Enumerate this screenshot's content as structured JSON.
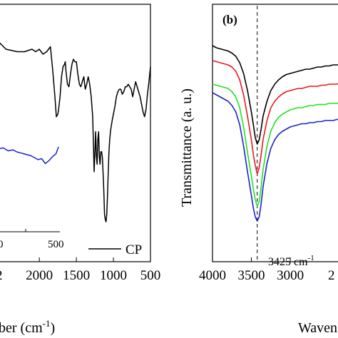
{
  "panels": {
    "a": {
      "xlabel_fragment": "ber (cm",
      "xlabel_sup": "-1",
      "xlabel_close": ")",
      "legend_label": "CP",
      "inset_tick_labels": [
        "0",
        "500"
      ]
    },
    "b": {
      "panel_label": "(b)",
      "ylabel": "Transmittance (a. u.)",
      "xlabel_fragment": "Waven",
      "annotation": "3425 cm",
      "annotation_sup": "-1"
    }
  },
  "colors": {
    "black": "#000000",
    "red": "#e8191c",
    "green": "#22e022",
    "blue": "#1c22c8"
  },
  "chart_data": [
    {
      "type": "line",
      "panel": "a",
      "xlabel": "ber (cm-1)",
      "xlim": [
        2550,
        500
      ],
      "x_reversed": true,
      "x_ticks": [
        2000,
        1500,
        1000,
        500
      ],
      "x_tick_labels": [
        "2000",
        "1500",
        "1000",
        "500"
      ],
      "x_tick_label_partial": "2",
      "series": [
        {
          "name": "CP",
          "color": "#000000",
          "x": [
            2550,
            2450,
            2300,
            2200,
            2100,
            2050,
            2000,
            1950,
            1900,
            1850,
            1820,
            1790,
            1770,
            1750,
            1740,
            1720,
            1700,
            1680,
            1660,
            1650,
            1640,
            1620,
            1600,
            1580,
            1560,
            1540,
            1520,
            1500,
            1480,
            1460,
            1440,
            1420,
            1400,
            1380,
            1360,
            1340,
            1320,
            1300,
            1280,
            1260,
            1250,
            1240,
            1230,
            1220,
            1210,
            1200,
            1190,
            1180,
            1170,
            1160,
            1150,
            1140,
            1130,
            1120,
            1110,
            1100,
            1090,
            1080,
            1070,
            1060,
            1050,
            1040,
            1030,
            1020,
            1000,
            980,
            960,
            940,
            920,
            900,
            880,
            860,
            840,
            820,
            800,
            780,
            760,
            740,
            720,
            700,
            680,
            660,
            640,
            620,
            600,
            580,
            560,
            540,
            520,
            500
          ],
          "y": [
            74,
            71,
            70,
            70,
            71,
            70,
            71,
            69,
            70,
            72,
            63,
            52,
            44,
            45,
            47,
            52,
            60,
            64,
            65,
            66,
            62,
            57,
            56,
            61,
            65,
            67,
            66,
            66,
            61,
            57,
            56,
            58,
            60,
            55,
            57,
            60,
            57,
            52,
            44,
            22,
            30,
            38,
            28,
            25,
            35,
            38,
            28,
            25,
            30,
            30,
            28,
            22,
            15,
            5,
            3,
            2,
            5,
            12,
            22,
            30,
            35,
            38,
            40,
            42,
            45,
            48,
            52,
            54,
            55,
            55,
            53,
            54,
            56,
            56,
            57,
            56,
            55,
            52,
            55,
            58,
            56,
            54,
            52,
            49,
            46,
            44,
            47,
            53,
            58,
            64
          ]
        }
      ],
      "inset": {
        "x_tick_labels": [
          "0",
          "500"
        ],
        "series": [
          {
            "color": "#1c22c8",
            "x": [
              0,
              40,
              80,
              120,
              150,
              180,
              210,
              240,
              270,
              300,
              330,
              360,
              390,
              420,
              450,
              480,
              500
            ],
            "y": [
              30,
              31,
              28,
              29,
              27,
              26,
              25,
              24,
              23,
              21,
              19,
              20,
              15,
              18,
              22,
              25,
              32
            ]
          }
        ]
      }
    },
    {
      "type": "line",
      "panel": "b",
      "xlabel": "Waven",
      "ylabel": "Transmittance (a. u.)",
      "xlim": [
        4000,
        2350
      ],
      "x_reversed": true,
      "x_ticks": [
        4000,
        3500,
        3000
      ],
      "x_tick_labels": [
        "4000",
        "3500",
        "3000"
      ],
      "x_tick_label_partial": "2",
      "reference_line": {
        "x": 3425,
        "style": "dashed",
        "label": "3425 cm-1"
      },
      "series": [
        {
          "color": "#000000",
          "x": [
            4000,
            3950,
            3900,
            3850,
            3800,
            3750,
            3700,
            3650,
            3600,
            3550,
            3500,
            3475,
            3450,
            3425,
            3400,
            3375,
            3350,
            3300,
            3250,
            3200,
            3150,
            3100,
            3050,
            3000,
            2950,
            2900,
            2850,
            2800,
            2750,
            2700,
            2650,
            2600,
            2550,
            2500,
            2450,
            2400,
            2350
          ],
          "y": [
            92,
            91,
            90.5,
            90,
            89.5,
            88.5,
            87,
            84,
            79,
            71,
            61,
            55,
            49,
            46,
            48,
            53,
            59,
            66,
            71,
            74,
            76,
            77.5,
            78.5,
            79,
            79.5,
            80,
            80.5,
            81,
            81,
            81.5,
            82,
            82,
            82.5,
            82.5,
            83,
            83,
            83
          ]
        },
        {
          "color": "#e8191c",
          "x": [
            4000,
            3950,
            3900,
            3850,
            3800,
            3750,
            3700,
            3650,
            3600,
            3550,
            3500,
            3475,
            3450,
            3425,
            3400,
            3375,
            3350,
            3300,
            3250,
            3200,
            3150,
            3100,
            3050,
            3000,
            2950,
            2900,
            2850,
            2800,
            2750,
            2700,
            2650,
            2600,
            2550,
            2500,
            2450,
            2400,
            2350
          ],
          "y": [
            85,
            84.5,
            84,
            83.5,
            83,
            82,
            80,
            76,
            69,
            59,
            48,
            41,
            36,
            32,
            35,
            41,
            48,
            57,
            63,
            66,
            68,
            69.5,
            70.5,
            71,
            71.5,
            72,
            72,
            72.5,
            73,
            73,
            73,
            73.5,
            73.5,
            74,
            74,
            74,
            74.5
          ]
        },
        {
          "color": "#22e022",
          "x": [
            4000,
            3950,
            3900,
            3850,
            3800,
            3750,
            3700,
            3650,
            3600,
            3550,
            3500,
            3475,
            3450,
            3425,
            3400,
            3375,
            3350,
            3300,
            3250,
            3200,
            3150,
            3100,
            3050,
            3000,
            2950,
            2900,
            2850,
            2800,
            2750,
            2700,
            2650,
            2600,
            2550,
            2500,
            2450,
            2400,
            2350
          ],
          "y": [
            74,
            73.5,
            73,
            72.5,
            72,
            70.5,
            68,
            63,
            54,
            42,
            31,
            25,
            20,
            17,
            19,
            26,
            34,
            45,
            52,
            56,
            58.5,
            60,
            61,
            62,
            62.5,
            63,
            63,
            63.5,
            64,
            64,
            64.5,
            64.5,
            64.5,
            65,
            65,
            65,
            65.5
          ]
        },
        {
          "color": "#1c22c8",
          "x": [
            4000,
            3950,
            3900,
            3850,
            3800,
            3750,
            3700,
            3650,
            3600,
            3550,
            3500,
            3475,
            3450,
            3425,
            3400,
            3375,
            3350,
            3300,
            3250,
            3200,
            3150,
            3100,
            3050,
            3000,
            2950,
            2900,
            2850,
            2800,
            2750,
            2700,
            2650,
            2600,
            2550,
            2500,
            2450,
            2400,
            2350
          ],
          "y": [
            70,
            69,
            68,
            67,
            66,
            64,
            61,
            55,
            45,
            33,
            22,
            16,
            12,
            10,
            12,
            18,
            26,
            37,
            44,
            48,
            50.5,
            52,
            53,
            54,
            54.5,
            55,
            55.5,
            55.5,
            56,
            56,
            56.5,
            56.5,
            57,
            57,
            57,
            57.5,
            57.5
          ]
        }
      ]
    }
  ]
}
